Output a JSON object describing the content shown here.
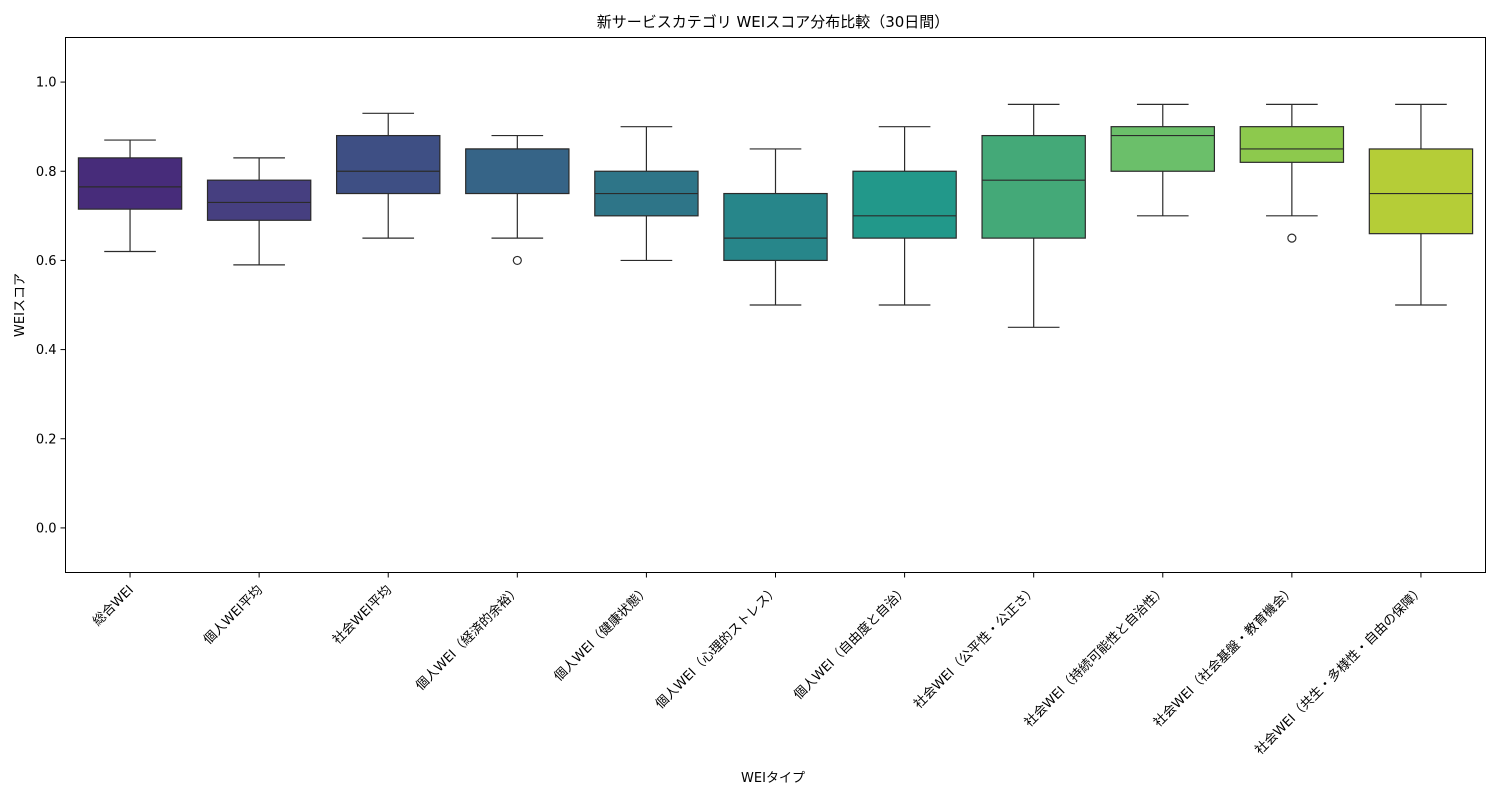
{
  "chart_data": {
    "type": "box",
    "title": "新サービスカテゴリ WEIスコア分布比較（30日間）",
    "xlabel": "WEIタイプ",
    "ylabel": "WEIスコア",
    "ylim": [
      -0.1,
      1.1
    ],
    "yticks": [
      0.0,
      0.2,
      0.4,
      0.6,
      0.8,
      1.0
    ],
    "ytick_labels": [
      "0.0",
      "0.2",
      "0.4",
      "0.6",
      "0.8",
      "1.0"
    ],
    "grid": false,
    "categories": [
      "総合WEI",
      "個人WEI平均",
      "社会WEI平均",
      "個人WEI（経済的余裕）",
      "個人WEI（健康状態）",
      "個人WEI（心理的ストレス）",
      "個人WEI（自由度と自治）",
      "社会WEI（公平性・公正さ）",
      "社会WEI（持続可能性と自治性）",
      "社会WEI（社会基盤・教育機会）",
      "社会WEI（共生・多様性・自由の保障）"
    ],
    "boxes": [
      {
        "whislo": 0.62,
        "q1": 0.715,
        "med": 0.765,
        "q3": 0.83,
        "whishi": 0.87,
        "fliers": [],
        "color": "#472c7a"
      },
      {
        "whislo": 0.59,
        "q1": 0.69,
        "med": 0.73,
        "q3": 0.78,
        "whishi": 0.83,
        "fliers": [],
        "color": "#463f80"
      },
      {
        "whislo": 0.65,
        "q1": 0.75,
        "med": 0.8,
        "q3": 0.88,
        "whishi": 0.93,
        "fliers": [],
        "color": "#3e4f84"
      },
      {
        "whislo": 0.65,
        "q1": 0.75,
        "med": 0.85,
        "q3": 0.85,
        "whishi": 0.88,
        "fliers": [
          0.6
        ],
        "color": "#366487"
      },
      {
        "whislo": 0.6,
        "q1": 0.7,
        "med": 0.75,
        "q3": 0.8,
        "whishi": 0.9,
        "fliers": [],
        "color": "#2e7588"
      },
      {
        "whislo": 0.5,
        "q1": 0.6,
        "med": 0.65,
        "q3": 0.75,
        "whishi": 0.85,
        "fliers": [],
        "color": "#27868a"
      },
      {
        "whislo": 0.5,
        "q1": 0.65,
        "med": 0.7,
        "q3": 0.8,
        "whishi": 0.9,
        "fliers": [],
        "color": "#22988a"
      },
      {
        "whislo": 0.45,
        "q1": 0.65,
        "med": 0.78,
        "q3": 0.88,
        "whishi": 0.95,
        "fliers": [],
        "color": "#44a978"
      },
      {
        "whislo": 0.7,
        "q1": 0.8,
        "med": 0.88,
        "q3": 0.9,
        "whishi": 0.95,
        "fliers": [],
        "color": "#6bbf6a"
      },
      {
        "whislo": 0.7,
        "q1": 0.82,
        "med": 0.85,
        "q3": 0.9,
        "whishi": 0.95,
        "fliers": [
          0.65
        ],
        "color": "#8dc94d"
      },
      {
        "whislo": 0.5,
        "q1": 0.66,
        "med": 0.75,
        "q3": 0.85,
        "whishi": 0.95,
        "fliers": [],
        "color": "#b5cd37"
      }
    ]
  }
}
